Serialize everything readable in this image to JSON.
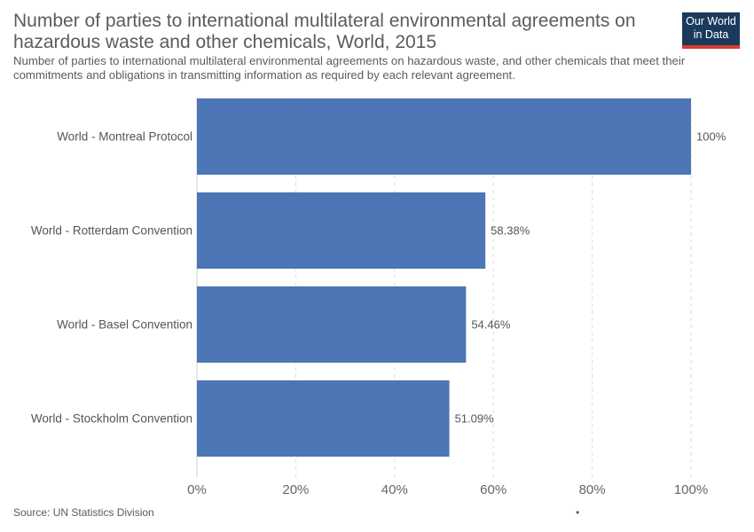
{
  "header": {
    "title": "Number of parties to international multilateral environmental agreements on hazardous waste and other chemicals, World, 2015",
    "subtitle": "Number of parties to international multilateral environmental agreements on hazardous waste, and other chemicals that meet their commitments and obligations in transmitting information as required by each relevant agreement."
  },
  "logo": {
    "line1": "Our World",
    "line2": "in Data",
    "bg_color": "#1a3a5c",
    "accent_color": "#d73c2f"
  },
  "footer": {
    "source": "Source: UN Statistics Division",
    "dot": "•"
  },
  "chart_data": {
    "type": "bar",
    "orientation": "horizontal",
    "categories": [
      "World - Montreal Protocol",
      "World - Rotterdam Convention",
      "World - Basel Convention",
      "World - Stockholm Convention"
    ],
    "values": [
      100,
      58.38,
      54.46,
      51.09
    ],
    "value_labels": [
      "100%",
      "58.38%",
      "54.46%",
      "51.09%"
    ],
    "xlim": [
      0,
      100
    ],
    "ticks": [
      0,
      20,
      40,
      60,
      80,
      100
    ],
    "tick_labels": [
      "0%",
      "20%",
      "40%",
      "60%",
      "80%",
      "100%"
    ],
    "bar_color": "#4c76b5",
    "grid": true
  }
}
